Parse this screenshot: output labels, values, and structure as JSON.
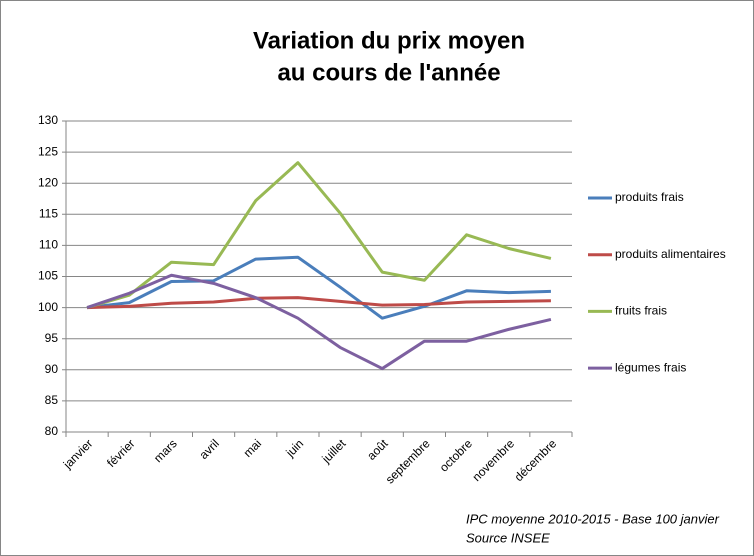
{
  "chart_data": {
    "type": "line",
    "title_lines": [
      "Variation du prix moyen",
      "au cours de l'année"
    ],
    "categories": [
      "janvier",
      "février",
      "mars",
      "avril",
      "mai",
      "juin",
      "juillet",
      "août",
      "septembre",
      "octobre",
      "novembre",
      "décembre"
    ],
    "series": [
      {
        "name": "produits frais",
        "color": "#4a7ebb",
        "values": [
          100,
          100.8,
          104.2,
          104.3,
          107.8,
          108.1,
          103.3,
          98.3,
          100.2,
          102.7,
          102.4,
          102.6
        ]
      },
      {
        "name": "produits alimentaires",
        "color": "#be4b48",
        "values": [
          100,
          100.2,
          100.7,
          100.9,
          101.5,
          101.6,
          101,
          100.4,
          100.5,
          100.9,
          101,
          101.1
        ]
      },
      {
        "name": "fruits frais",
        "color": "#98b954",
        "values": [
          100,
          102,
          107.3,
          106.9,
          117.2,
          123.3,
          115.2,
          105.7,
          104.4,
          111.7,
          109.5,
          107.9
        ]
      },
      {
        "name": "légumes frais",
        "color": "#7d60a0",
        "values": [
          100,
          102.3,
          105.2,
          103.9,
          101.6,
          98.3,
          93.6,
          90.2,
          94.6,
          94.6,
          96.5,
          98.1
        ]
      }
    ],
    "ylim": [
      80,
      130
    ],
    "yticks": [
      80,
      85,
      90,
      95,
      100,
      105,
      110,
      115,
      120,
      125,
      130
    ],
    "grid": true,
    "legend": "right",
    "notes": [
      "IPC moyenne 2010-2015 - Base 100 janvier",
      "Source  INSEE"
    ]
  }
}
